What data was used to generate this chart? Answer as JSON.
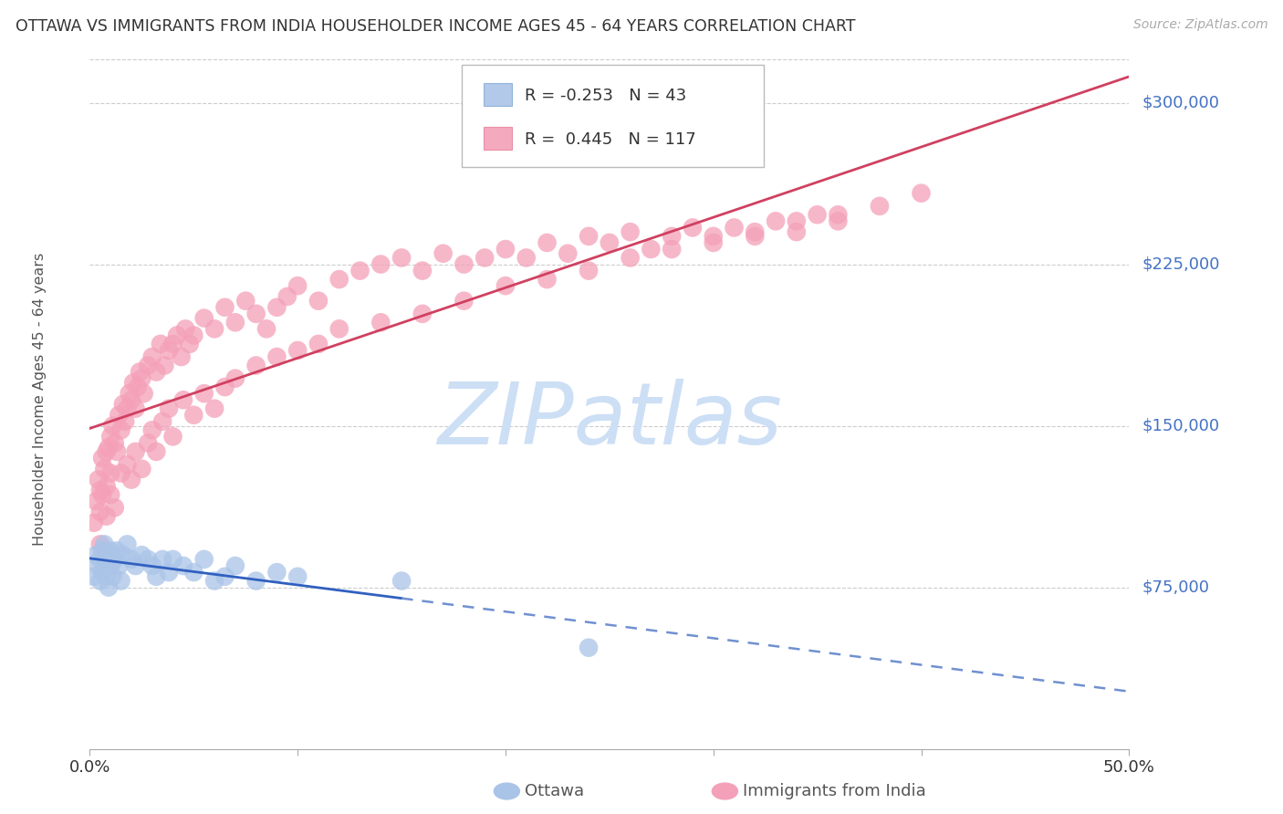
{
  "title": "OTTAWA VS IMMIGRANTS FROM INDIA HOUSEHOLDER INCOME AGES 45 - 64 YEARS CORRELATION CHART",
  "source": "Source: ZipAtlas.com",
  "ylabel": "Householder Income Ages 45 - 64 years",
  "ytick_labels": [
    "$75,000",
    "$150,000",
    "$225,000",
    "$300,000"
  ],
  "ytick_values": [
    75000,
    150000,
    225000,
    300000
  ],
  "ymin": 0,
  "ymax": 325000,
  "xmin": 0.0,
  "xmax": 0.5,
  "legend_ottawa_r": "-0.253",
  "legend_ottawa_n": "43",
  "legend_india_r": "0.445",
  "legend_india_n": "117",
  "ottawa_color": "#aac4e8",
  "india_color": "#f4a0b8",
  "ottawa_line_solid_color": "#3060c0",
  "ottawa_line_dash_color": "#7090d0",
  "india_line_color": "#d04060",
  "watermark_text": "ZIPatlas",
  "watermark_color": "#ccdff5",
  "background_color": "#ffffff",
  "grid_color": "#cccccc",
  "label_color": "#4472c4",
  "ottawa_legend_label": "Ottawa",
  "india_legend_label": "Immigrants from India",
  "ottawa_points_x": [
    0.002,
    0.003,
    0.004,
    0.005,
    0.005,
    0.006,
    0.006,
    0.007,
    0.007,
    0.008,
    0.008,
    0.009,
    0.009,
    0.01,
    0.01,
    0.011,
    0.011,
    0.012,
    0.013,
    0.014,
    0.015,
    0.016,
    0.018,
    0.02,
    0.022,
    0.025,
    0.028,
    0.03,
    0.032,
    0.035,
    0.038,
    0.04,
    0.045,
    0.05,
    0.055,
    0.06,
    0.065,
    0.07,
    0.08,
    0.09,
    0.1,
    0.15,
    0.24
  ],
  "ottawa_points_y": [
    80000,
    90000,
    85000,
    88000,
    78000,
    92000,
    82000,
    95000,
    85000,
    90000,
    80000,
    88000,
    75000,
    92000,
    85000,
    90000,
    80000,
    88000,
    92000,
    85000,
    78000,
    90000,
    95000,
    88000,
    85000,
    90000,
    88000,
    85000,
    80000,
    88000,
    82000,
    88000,
    85000,
    82000,
    88000,
    78000,
    80000,
    85000,
    78000,
    82000,
    80000,
    78000,
    47000
  ],
  "india_points_x": [
    0.002,
    0.003,
    0.004,
    0.005,
    0.005,
    0.006,
    0.006,
    0.007,
    0.008,
    0.008,
    0.009,
    0.01,
    0.01,
    0.011,
    0.012,
    0.013,
    0.014,
    0.015,
    0.016,
    0.017,
    0.018,
    0.019,
    0.02,
    0.021,
    0.022,
    0.023,
    0.024,
    0.025,
    0.026,
    0.028,
    0.03,
    0.032,
    0.034,
    0.036,
    0.038,
    0.04,
    0.042,
    0.044,
    0.046,
    0.048,
    0.05,
    0.055,
    0.06,
    0.065,
    0.07,
    0.075,
    0.08,
    0.085,
    0.09,
    0.095,
    0.1,
    0.11,
    0.12,
    0.13,
    0.14,
    0.15,
    0.16,
    0.17,
    0.18,
    0.19,
    0.2,
    0.21,
    0.22,
    0.23,
    0.24,
    0.25,
    0.26,
    0.27,
    0.28,
    0.29,
    0.3,
    0.31,
    0.32,
    0.33,
    0.34,
    0.35,
    0.36,
    0.005,
    0.008,
    0.01,
    0.012,
    0.015,
    0.018,
    0.02,
    0.022,
    0.025,
    0.028,
    0.03,
    0.032,
    0.035,
    0.038,
    0.04,
    0.045,
    0.05,
    0.055,
    0.06,
    0.065,
    0.07,
    0.08,
    0.09,
    0.1,
    0.11,
    0.12,
    0.14,
    0.16,
    0.18,
    0.2,
    0.22,
    0.24,
    0.26,
    0.28,
    0.3,
    0.32,
    0.34,
    0.36,
    0.38,
    0.4
  ],
  "india_points_y": [
    105000,
    115000,
    125000,
    120000,
    110000,
    135000,
    118000,
    130000,
    138000,
    122000,
    140000,
    145000,
    128000,
    150000,
    142000,
    138000,
    155000,
    148000,
    160000,
    152000,
    158000,
    165000,
    162000,
    170000,
    158000,
    168000,
    175000,
    172000,
    165000,
    178000,
    182000,
    175000,
    188000,
    178000,
    185000,
    188000,
    192000,
    182000,
    195000,
    188000,
    192000,
    200000,
    195000,
    205000,
    198000,
    208000,
    202000,
    195000,
    205000,
    210000,
    215000,
    208000,
    218000,
    222000,
    225000,
    228000,
    222000,
    230000,
    225000,
    228000,
    232000,
    228000,
    235000,
    230000,
    238000,
    235000,
    240000,
    232000,
    238000,
    242000,
    235000,
    242000,
    238000,
    245000,
    240000,
    248000,
    245000,
    95000,
    108000,
    118000,
    112000,
    128000,
    132000,
    125000,
    138000,
    130000,
    142000,
    148000,
    138000,
    152000,
    158000,
    145000,
    162000,
    155000,
    165000,
    158000,
    168000,
    172000,
    178000,
    182000,
    185000,
    188000,
    195000,
    198000,
    202000,
    208000,
    215000,
    218000,
    222000,
    228000,
    232000,
    238000,
    240000,
    245000,
    248000,
    252000,
    258000
  ]
}
